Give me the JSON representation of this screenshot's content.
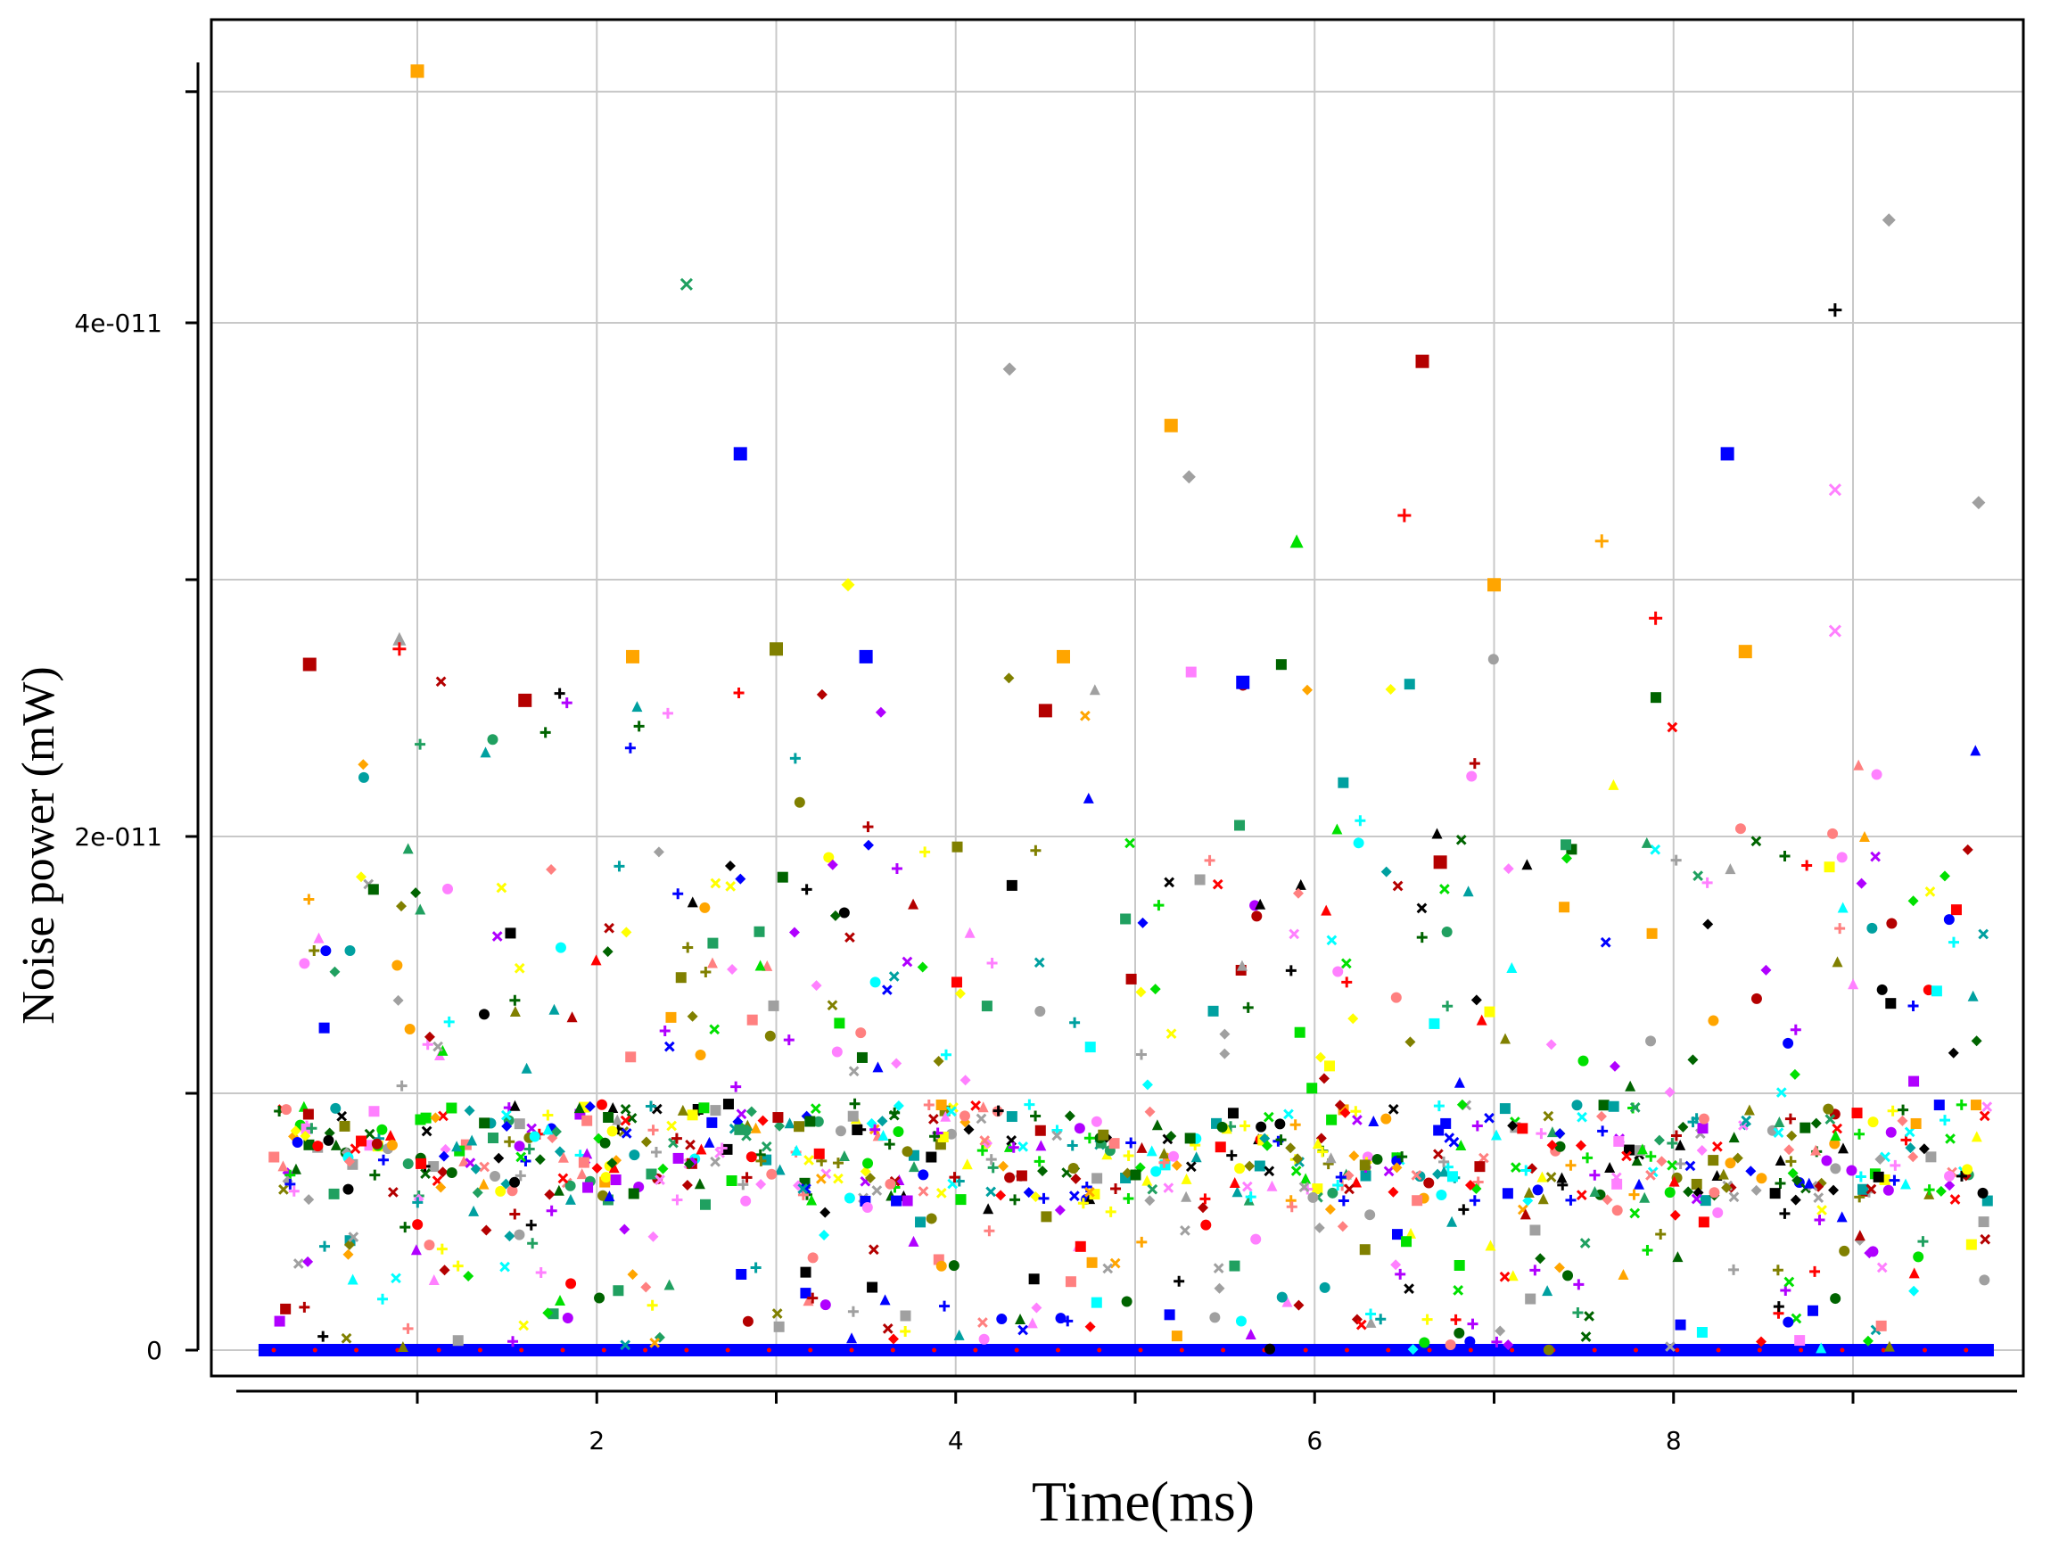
{
  "chart_data": {
    "type": "scatter",
    "title": "",
    "xlabel": "Time(ms)",
    "ylabel": "Noise power (mW)",
    "xlim": [
      0,
      9.8
    ],
    "ylim": [
      -1.5e-12,
      5e-11
    ],
    "x_ticks": [
      1,
      2,
      3,
      4,
      5,
      6,
      7,
      8,
      9
    ],
    "x_tick_labels": {
      "2": "2",
      "4": "4",
      "6": "6",
      "8": "8"
    },
    "y_ticks": [
      0,
      1e-11,
      2e-11,
      3e-11,
      4e-11,
      4.9e-11
    ],
    "y_tick_labels": {
      "0": "0",
      "2e-11": "2e-011",
      "4e-11": "4e-011"
    },
    "grid": true,
    "legend": "none",
    "colors": [
      "#ffa500",
      "#0000ff",
      "#b40000",
      "#ff0000",
      "#00e000",
      "#00ffff",
      "#ffff00",
      "#000000",
      "#a0a0a0",
      "#006400",
      "#00a0a0",
      "#808000",
      "#b000ff",
      "#ff80ff",
      "#ff8080",
      "#20a060"
    ],
    "marker_kinds": [
      "square",
      "circle",
      "triangle",
      "diamond",
      "plus",
      "cross"
    ],
    "highlighted_points": [
      {
        "x": 1.0,
        "y": 4.98e-11,
        "color": "#ffa500",
        "marker": "square"
      },
      {
        "x": 2.5,
        "y": 4.15e-11,
        "color": "#20a060",
        "marker": "cross"
      },
      {
        "x": 2.8,
        "y": 3.49e-11,
        "color": "#0000ff",
        "marker": "square"
      },
      {
        "x": 4.3,
        "y": 3.82e-11,
        "color": "#a0a0a0",
        "marker": "diamond"
      },
      {
        "x": 5.2,
        "y": 3.6e-11,
        "color": "#ffa500",
        "marker": "square"
      },
      {
        "x": 5.3,
        "y": 3.4e-11,
        "color": "#a0a0a0",
        "marker": "diamond"
      },
      {
        "x": 6.6,
        "y": 3.85e-11,
        "color": "#b40000",
        "marker": "square"
      },
      {
        "x": 6.5,
        "y": 3.25e-11,
        "color": "#ff0000",
        "marker": "plus"
      },
      {
        "x": 5.9,
        "y": 3.15e-11,
        "color": "#00e000",
        "marker": "triangle"
      },
      {
        "x": 7.0,
        "y": 2.98e-11,
        "color": "#ffa500",
        "marker": "square"
      },
      {
        "x": 7.6,
        "y": 3.15e-11,
        "color": "#ffa500",
        "marker": "plus"
      },
      {
        "x": 8.3,
        "y": 3.49e-11,
        "color": "#0000ff",
        "marker": "square"
      },
      {
        "x": 8.9,
        "y": 3.35e-11,
        "color": "#ff80ff",
        "marker": "cross"
      },
      {
        "x": 8.9,
        "y": 4.05e-11,
        "color": "#000000",
        "marker": "plus"
      },
      {
        "x": 9.2,
        "y": 4.4e-11,
        "color": "#a0a0a0",
        "marker": "diamond"
      },
      {
        "x": 9.7,
        "y": 3.3e-11,
        "color": "#a0a0a0",
        "marker": "diamond"
      },
      {
        "x": 3.4,
        "y": 2.98e-11,
        "color": "#ffff00",
        "marker": "diamond"
      },
      {
        "x": 0.4,
        "y": 2.67e-11,
        "color": "#b40000",
        "marker": "square"
      },
      {
        "x": 0.9,
        "y": 2.77e-11,
        "color": "#a0a0a0",
        "marker": "triangle"
      },
      {
        "x": 0.9,
        "y": 2.73e-11,
        "color": "#ff0000",
        "marker": "plus"
      },
      {
        "x": 1.6,
        "y": 2.53e-11,
        "color": "#b40000",
        "marker": "square"
      },
      {
        "x": 2.2,
        "y": 2.7e-11,
        "color": "#ffa500",
        "marker": "square"
      },
      {
        "x": 3.0,
        "y": 2.73e-11,
        "color": "#808000",
        "marker": "square"
      },
      {
        "x": 3.5,
        "y": 2.7e-11,
        "color": "#0000ff",
        "marker": "square"
      },
      {
        "x": 4.5,
        "y": 2.49e-11,
        "color": "#b40000",
        "marker": "square"
      },
      {
        "x": 4.6,
        "y": 2.7e-11,
        "color": "#ffa500",
        "marker": "square"
      },
      {
        "x": 5.6,
        "y": 2.6e-11,
        "color": "#0000ff",
        "marker": "square"
      },
      {
        "x": 6.7,
        "y": 1.9e-11,
        "color": "#b40000",
        "marker": "square"
      },
      {
        "x": 7.9,
        "y": 2.85e-11,
        "color": "#ff0000",
        "marker": "plus"
      },
      {
        "x": 8.4,
        "y": 2.72e-11,
        "color": "#ffa500",
        "marker": "square"
      },
      {
        "x": 8.9,
        "y": 2.8e-11,
        "color": "#ff80ff",
        "marker": "cross"
      }
    ],
    "point_cloud_summary": {
      "n_points": 1200,
      "x_range": [
        0.15,
        9.75
      ],
      "dense_band_y": [
        6e-12,
        9.5e-12
      ],
      "baseline_y": 0,
      "sparse_band_y": [
        1e-11,
        2e-11
      ]
    }
  }
}
